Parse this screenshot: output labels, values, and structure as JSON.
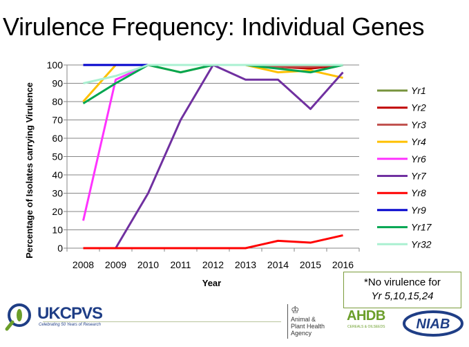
{
  "slide_title": "Virulence Frequency: Individual Genes",
  "note": {
    "line1": "*No virulence for",
    "line2": "Yr 5,10,15,24"
  },
  "logos": {
    "ukcpvs": "UKCPVS",
    "ukcpvs_tagline": "Celebrating 50 Years of Research",
    "apha_line1": "Animal &",
    "apha_line2": "Plant Health",
    "apha_line3": "Agency",
    "ahdb": "AHDB",
    "ahdb_sub": "CEREALS & OILSEEDS",
    "niab": "NIAB"
  },
  "chart_data": {
    "type": "line",
    "title": "",
    "xlabel": "Year",
    "ylabel": "Percentage of Isolates carrying Virulence",
    "categories": [
      "2008",
      "2009",
      "2010",
      "2011",
      "2012",
      "2013",
      "2014",
      "2015",
      "2016"
    ],
    "ylim": [
      0,
      100
    ],
    "yticks": [
      0,
      10,
      20,
      30,
      40,
      50,
      60,
      70,
      80,
      90,
      100
    ],
    "grid": "horizontal",
    "legend_position": "right",
    "series": [
      {
        "name": "Yr1",
        "color": "#77933c",
        "values": [
          100,
          100,
          100,
          100,
          100,
          100,
          100,
          100,
          100
        ]
      },
      {
        "name": "Yr2",
        "color": "#c00000",
        "values": [
          100,
          100,
          100,
          100,
          100,
          100,
          99,
          98,
          100
        ]
      },
      {
        "name": "Yr3",
        "color": "#c0504d",
        "values": [
          100,
          100,
          100,
          100,
          100,
          100,
          99,
          99,
          100
        ]
      },
      {
        "name": "Yr4",
        "color": "#ffc000",
        "values": [
          80,
          100,
          100,
          96,
          100,
          100,
          96,
          97,
          93
        ]
      },
      {
        "name": "Yr6",
        "color": "#ff33ff",
        "values": [
          15,
          92,
          100,
          100,
          100,
          100,
          100,
          100,
          100
        ]
      },
      {
        "name": "Yr7",
        "color": "#7030a0",
        "values": [
          null,
          0,
          30,
          70,
          100,
          92,
          92,
          76,
          96
        ]
      },
      {
        "name": "Yr8",
        "color": "#ff0000",
        "values": [
          0,
          0,
          0,
          0,
          0,
          0,
          4,
          3,
          7
        ]
      },
      {
        "name": "Yr9",
        "color": "#0000cc",
        "values": [
          100,
          100,
          100,
          100,
          100,
          100,
          100,
          100,
          100
        ]
      },
      {
        "name": "Yr17",
        "color": "#00a550",
        "values": [
          79,
          90,
          100,
          96,
          100,
          100,
          98,
          96,
          100
        ]
      },
      {
        "name": "Yr32",
        "color": "#aaf0d1",
        "values": [
          90,
          94,
          100,
          100,
          100,
          100,
          100,
          100,
          100
        ]
      }
    ]
  }
}
